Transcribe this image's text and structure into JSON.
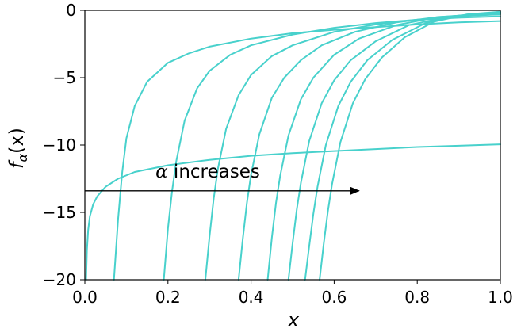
{
  "chart_data": {
    "type": "line",
    "xlabel": "x",
    "ylabel_main": "f",
    "ylabel_sub": "α",
    "ylabel_tail": "(x)",
    "xlim": [
      0.0,
      1.0
    ],
    "ylim": [
      -20,
      0
    ],
    "xticks": [
      0.0,
      0.2,
      0.4,
      0.6,
      0.8,
      1.0
    ],
    "xtick_labels": [
      "0.0",
      "0.2",
      "0.4",
      "0.6",
      "0.8",
      "1.0"
    ],
    "yticks": [
      0,
      -5,
      -10,
      -15,
      -20
    ],
    "ytick_labels": [
      "0",
      "−5",
      "−10",
      "−15",
      "−20"
    ],
    "grid": false,
    "line_color": "#48d1cc",
    "annotation": {
      "symbol": "α",
      "text": " increases",
      "arrow_from": [
        0.0,
        -13.4
      ],
      "arrow_to": [
        0.66,
        -13.4
      ]
    },
    "series": [
      {
        "x": [
          0.003,
          0.005,
          0.008,
          0.012,
          0.02,
          0.03,
          0.05,
          0.08,
          0.12,
          0.2,
          0.3,
          0.4,
          0.5,
          0.6,
          0.7,
          0.8,
          0.9,
          1.0
        ],
        "y": [
          -20.0,
          -17.8,
          -16.3,
          -15.3,
          -14.4,
          -13.8,
          -13.1,
          -12.5,
          -12.0,
          -11.5,
          -11.1,
          -10.8,
          -10.6,
          -10.45,
          -10.3,
          -10.15,
          -10.05,
          -9.95
        ]
      },
      {
        "x": [
          0.07,
          0.08,
          0.09,
          0.1,
          0.12,
          0.15,
          0.2,
          0.25,
          0.3,
          0.4,
          0.5,
          0.6,
          0.7,
          0.8,
          0.9,
          1.0
        ],
        "y": [
          -20.0,
          -15.5,
          -12.0,
          -9.5,
          -7.1,
          -5.3,
          -3.9,
          -3.2,
          -2.7,
          -2.1,
          -1.7,
          -1.45,
          -1.25,
          -1.05,
          -0.9,
          -0.8
        ]
      },
      {
        "x": [
          0.19,
          0.2,
          0.21,
          0.22,
          0.24,
          0.27,
          0.3,
          0.35,
          0.4,
          0.5,
          0.6,
          0.7,
          0.8,
          0.9,
          1.0
        ],
        "y": [
          -20.0,
          -16.2,
          -13.4,
          -11.2,
          -8.2,
          -5.8,
          -4.5,
          -3.3,
          -2.6,
          -1.8,
          -1.3,
          -0.95,
          -0.7,
          -0.55,
          -0.45
        ]
      },
      {
        "x": [
          0.29,
          0.3,
          0.31,
          0.32,
          0.34,
          0.37,
          0.4,
          0.45,
          0.5,
          0.6,
          0.7,
          0.8,
          0.9,
          1.0
        ],
        "y": [
          -20.0,
          -16.8,
          -14.0,
          -11.8,
          -8.8,
          -6.3,
          -4.8,
          -3.4,
          -2.6,
          -1.6,
          -1.05,
          -0.7,
          -0.45,
          -0.3
        ]
      },
      {
        "x": [
          0.37,
          0.38,
          0.39,
          0.4,
          0.42,
          0.45,
          0.48,
          0.52,
          0.57,
          0.65,
          0.75,
          0.85,
          1.0
        ],
        "y": [
          -20.0,
          -17.0,
          -14.3,
          -12.2,
          -9.2,
          -6.5,
          -5.0,
          -3.7,
          -2.6,
          -1.6,
          -0.9,
          -0.5,
          -0.25
        ]
      },
      {
        "x": [
          0.44,
          0.45,
          0.46,
          0.47,
          0.49,
          0.52,
          0.55,
          0.6,
          0.66,
          0.75,
          0.85,
          1.0
        ],
        "y": [
          -20.0,
          -16.9,
          -14.3,
          -12.3,
          -9.3,
          -6.6,
          -5.0,
          -3.3,
          -2.1,
          -1.1,
          -0.5,
          -0.2
        ]
      },
      {
        "x": [
          0.49,
          0.5,
          0.51,
          0.52,
          0.54,
          0.57,
          0.6,
          0.64,
          0.7,
          0.78,
          0.88,
          1.0
        ],
        "y": [
          -20.0,
          -17.3,
          -14.8,
          -12.8,
          -9.7,
          -6.9,
          -5.2,
          -3.7,
          -2.3,
          -1.1,
          -0.45,
          -0.15
        ]
      },
      {
        "x": [
          0.53,
          0.54,
          0.55,
          0.56,
          0.58,
          0.61,
          0.64,
          0.68,
          0.74,
          0.82,
          0.9,
          1.0
        ],
        "y": [
          -20.0,
          -17.5,
          -15.1,
          -13.1,
          -10.0,
          -7.1,
          -5.3,
          -3.7,
          -2.2,
          -0.95,
          -0.4,
          -0.12
        ]
      },
      {
        "x": [
          0.565,
          0.575,
          0.585,
          0.595,
          0.615,
          0.645,
          0.675,
          0.715,
          0.77,
          0.84,
          0.92,
          1.0
        ],
        "y": [
          -20.0,
          -17.3,
          -14.9,
          -12.9,
          -9.8,
          -6.9,
          -5.1,
          -3.5,
          -2.0,
          -0.85,
          -0.3,
          -0.1
        ]
      }
    ]
  }
}
